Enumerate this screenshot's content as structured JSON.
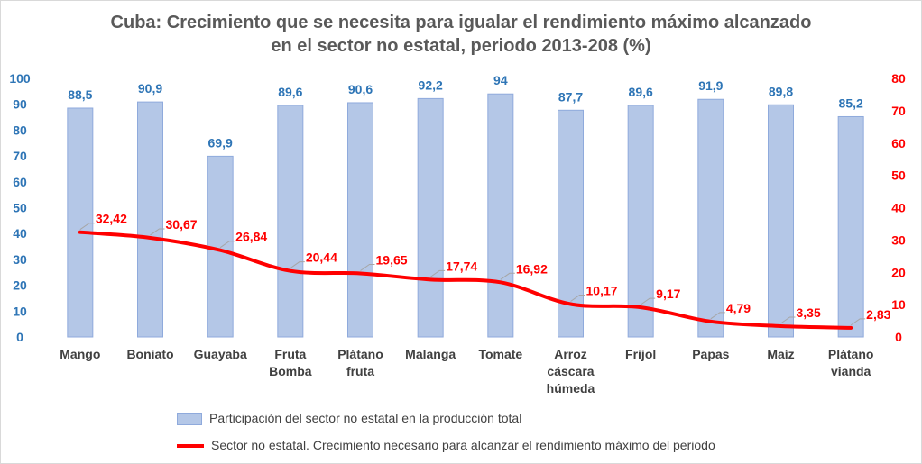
{
  "chart_data": {
    "type": "bar",
    "title_line1": "Cuba: Crecimiento que se necesita para igualar el rendimiento máximo alcanzado",
    "title_line2": "en el sector no estatal, periodo 2013-208 (%)",
    "categories": [
      [
        "Mango"
      ],
      [
        "Boniato"
      ],
      [
        "Guayaba"
      ],
      [
        "Fruta",
        "Bomba"
      ],
      [
        "Plátano",
        "fruta"
      ],
      [
        "Malanga"
      ],
      [
        "Tomate"
      ],
      [
        "Arroz",
        "cáscara",
        "húmeda"
      ],
      [
        "Frijol"
      ],
      [
        "Papas"
      ],
      [
        "Maíz"
      ],
      [
        "Plátano",
        "vianda"
      ]
    ],
    "series": [
      {
        "name": "Participación del sector no estatal en la producción total",
        "type": "bar",
        "axis": "left",
        "values": [
          88.5,
          90.9,
          69.9,
          89.6,
          90.6,
          92.2,
          94,
          87.7,
          89.6,
          91.9,
          89.8,
          85.2
        ],
        "labels": [
          "88,5",
          "90,9",
          "69,9",
          "89,6",
          "90,6",
          "92,2",
          "94",
          "87,7",
          "89,6",
          "91,9",
          "89,8",
          "85,2"
        ],
        "color": "#b4c7e7"
      },
      {
        "name": "Sector no estatal. Crecimiento necesario para alcanzar el  rendimiento máximo del periodo",
        "type": "line",
        "axis": "right",
        "values": [
          32.42,
          30.67,
          26.84,
          20.44,
          19.65,
          17.74,
          16.92,
          10.17,
          9.17,
          4.79,
          3.35,
          2.83
        ],
        "labels": [
          "32,42",
          "30,67",
          "26,84",
          "20,44",
          "19,65",
          "17,74",
          "16,92",
          "10,17",
          "9,17",
          "4,79",
          "3,35",
          "2,83"
        ],
        "color": "#ff0000"
      }
    ],
    "y_left": {
      "min": 0,
      "max": 100,
      "step": 10,
      "ticks": [
        "0",
        "10",
        "20",
        "30",
        "40",
        "50",
        "60",
        "70",
        "80",
        "90",
        "100"
      ]
    },
    "y_right": {
      "min": 0,
      "max": 80,
      "step": 10,
      "ticks": [
        "0",
        "10",
        "20",
        "30",
        "40",
        "50",
        "60",
        "70",
        "80"
      ]
    },
    "grid": false,
    "legend_position": "bottom"
  }
}
